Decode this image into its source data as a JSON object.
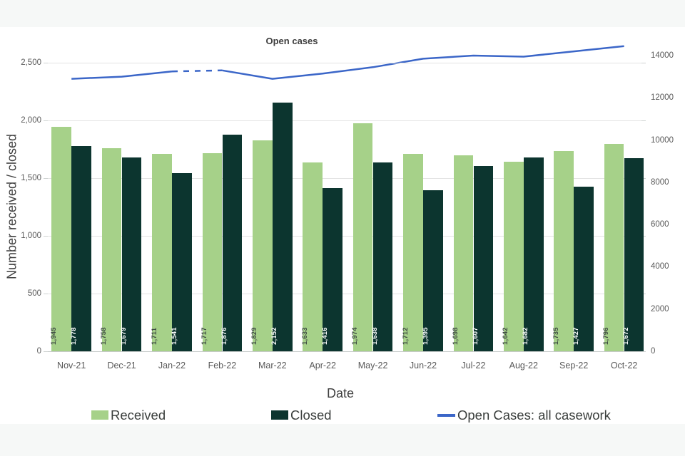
{
  "page": {
    "band_color": "#f6f8f7"
  },
  "chart_data": {
    "type": "combo_bar_line",
    "title": "Open cases",
    "x_axis": {
      "title": "Date",
      "categories": [
        "Nov-21",
        "Dec-21",
        "Jan-22",
        "Feb-22",
        "Mar-22",
        "Apr-22",
        "May-22",
        "Jun-22",
        "Jul-22",
        "Aug-22",
        "Sep-22",
        "Oct-22"
      ]
    },
    "left_axis": {
      "title": "Number received / closed",
      "max": 2500,
      "ticks": [
        0,
        500,
        1000,
        1500,
        2000,
        2500
      ],
      "tick_labels": [
        "0",
        "500",
        "1,000",
        "1,500",
        "2,000",
        "2,500"
      ]
    },
    "right_axis": {
      "max": 14000,
      "ticks": [
        0,
        2000,
        4000,
        6000,
        8000,
        10000,
        12000,
        14000
      ],
      "tick_labels": [
        "0",
        "2000",
        "4000",
        "6000",
        "8000",
        "10000",
        "12000",
        "14000"
      ]
    },
    "series": [
      {
        "name": "Received",
        "type": "bar",
        "color": "#a6d189",
        "label_color": "#3d4a42",
        "values": [
          1945,
          1758,
          1711,
          1717,
          1829,
          1633,
          1974,
          1712,
          1698,
          1642,
          1735,
          1796
        ],
        "value_labels": [
          "1,945",
          "1,758",
          "1,711",
          "1,717",
          "1,829",
          "1,633",
          "1,974",
          "1,712",
          "1,698",
          "1,642",
          "1,735",
          "1,796"
        ]
      },
      {
        "name": "Closed",
        "type": "bar",
        "color": "#0c352f",
        "label_color": "#ffffff",
        "values": [
          1778,
          1679,
          1541,
          1876,
          2152,
          1416,
          1638,
          1395,
          1607,
          1682,
          1427,
          1672
        ],
        "value_labels": [
          "1,778",
          "1,679",
          "1,541",
          "1,876",
          "2,152",
          "1,416",
          "1,638",
          "1,395",
          "1,607",
          "1,682",
          "1,427",
          "1,672"
        ]
      },
      {
        "name": "Open Cases: all casework",
        "type": "line",
        "axis": "right",
        "color": "#3b66c8",
        "values": [
          12900,
          13000,
          13250,
          13300,
          12900,
          13150,
          13450,
          13850,
          14000,
          13950,
          14200,
          14450
        ],
        "dashed_segment": [
          2,
          3
        ]
      }
    ],
    "legend": [
      {
        "label": "Received",
        "marker": "square",
        "color": "#a6d189"
      },
      {
        "label": "Closed",
        "marker": "square",
        "color": "#0c352f"
      },
      {
        "label": "Open Cases: all casework",
        "marker": "line",
        "color": "#3b66c8"
      }
    ],
    "grid": true,
    "legend_position": "bottom"
  }
}
